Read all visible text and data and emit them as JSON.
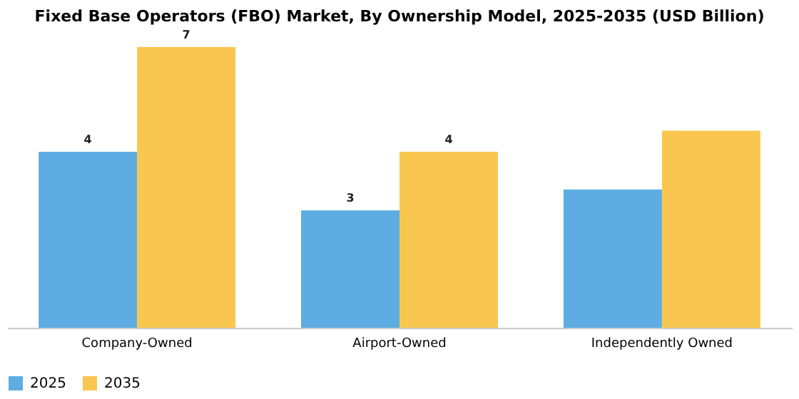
{
  "chart_data": {
    "type": "bar",
    "title": "Fixed Base Operators (FBO) Market, By Ownership Model, 2025-2035 (USD Billion)",
    "categories": [
      "Company-Owned",
      "Airport-Owned",
      "Independently Owned"
    ],
    "series": [
      {
        "name": "2025",
        "color": "#5dade2",
        "values": [
          4.2,
          2.8,
          3.3
        ],
        "value_labels": [
          "4",
          "3",
          null
        ]
      },
      {
        "name": "2035",
        "color": "#f9c74f",
        "values": [
          6.7,
          4.2,
          4.7
        ],
        "value_labels": [
          "7",
          "4",
          null
        ]
      }
    ],
    "legend": "bottom",
    "grid": false
  }
}
